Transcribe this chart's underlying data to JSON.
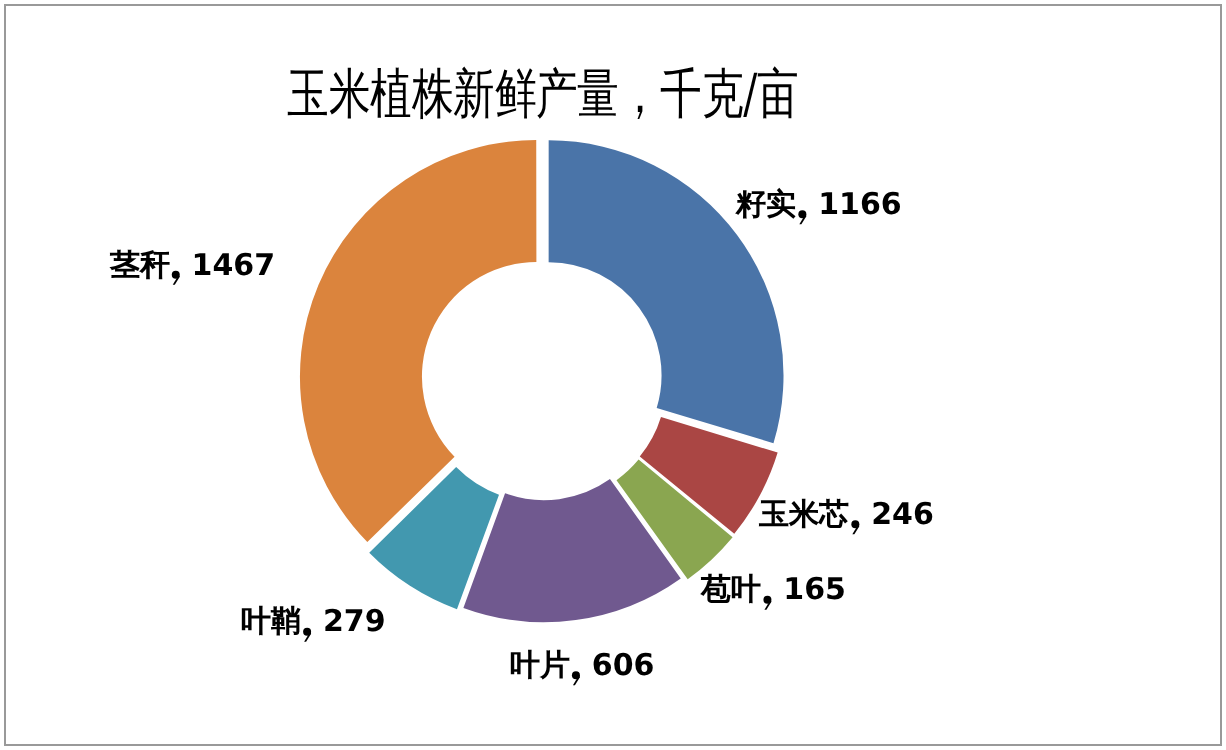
{
  "chart_data": {
    "type": "donut",
    "title": "玉米植株新鲜产量，千克/亩",
    "categories": [
      "籽实",
      "玉米芯",
      "苞叶",
      "叶片",
      "叶鞘",
      "茎秆"
    ],
    "values": [
      1166,
      246,
      165,
      606,
      279,
      1467
    ],
    "colors": [
      "#4a74a8",
      "#aa4644",
      "#8aa650",
      "#70598f",
      "#4298af",
      "#db843d"
    ],
    "data_labels": true,
    "legend": false
  }
}
